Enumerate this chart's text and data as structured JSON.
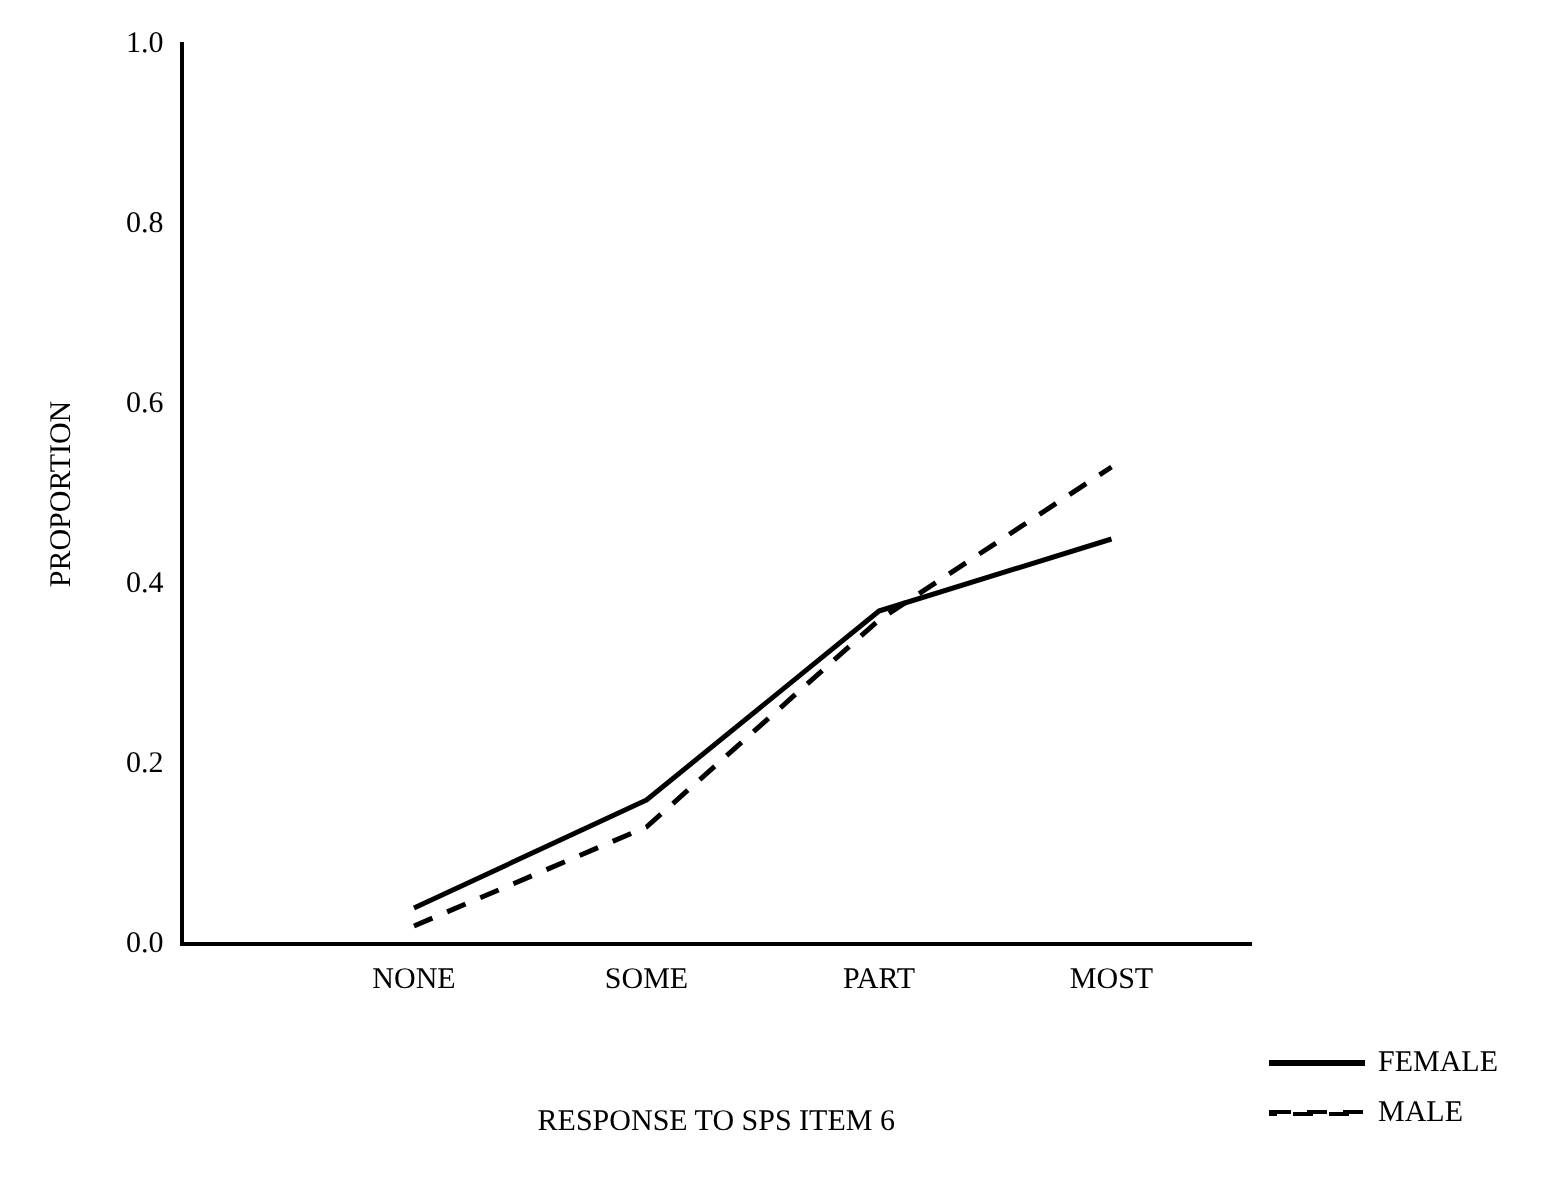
{
  "chart_data": {
    "type": "line",
    "xlabel": "RESPONSE TO SPS ITEM 6",
    "ylabel": "PROPORTION",
    "categories": [
      "NONE",
      "SOME",
      "PART",
      "MOST"
    ],
    "series": [
      {
        "name": "FEMALE",
        "color": "#000000",
        "line_style": "solid",
        "values": [
          0.04,
          0.16,
          0.37,
          0.45
        ]
      },
      {
        "name": "MALE",
        "color": "#000000",
        "line_style": "dashed",
        "values": [
          0.02,
          0.13,
          0.36,
          0.53
        ]
      }
    ],
    "ylim": [
      0,
      1
    ],
    "yticks": [
      {
        "value": 0,
        "label": "0.0"
      },
      {
        "value": 0.2,
        "label": "0.2"
      },
      {
        "value": 0.4,
        "label": "0.4"
      },
      {
        "value": 0.6,
        "label": "0.6"
      },
      {
        "value": 0.8,
        "label": "0.8"
      },
      {
        "value": 1,
        "label": "1.0"
      }
    ],
    "grid": false,
    "legend": "bottom right",
    "marker": "none"
  }
}
